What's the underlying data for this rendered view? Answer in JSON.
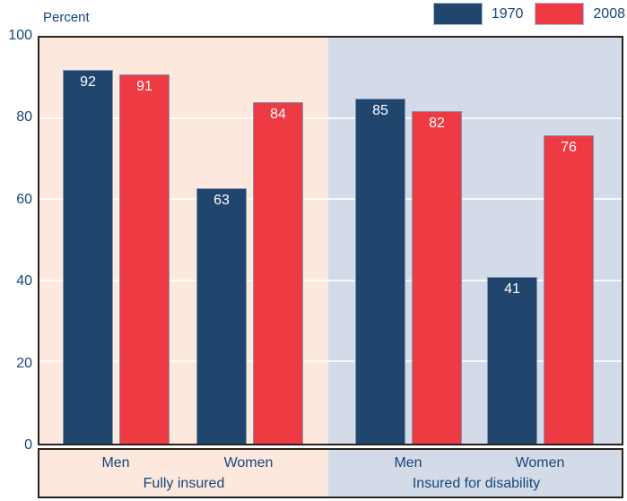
{
  "colors": {
    "bar_1970": "#21466e",
    "bar_2008": "#ee3a43",
    "bg_left": "#fde8dd",
    "bg_right": "#d3dbe8",
    "text": "#17457a",
    "border_dark": "#29221e",
    "bar_border": "#8094b5",
    "swatch_border": "#aebdd4",
    "gridline": "rgba(255,255,255,0.8)"
  },
  "chart_data": {
    "type": "bar",
    "ylabel": "Percent",
    "ylim": [
      0,
      100
    ],
    "yticks": [
      0,
      20,
      40,
      60,
      80,
      100
    ],
    "grid": true,
    "legend": [
      "1970",
      "2008"
    ],
    "legend_position": "top-right",
    "groups": [
      {
        "label": "Fully insured",
        "categories": [
          "Men",
          "Women"
        ],
        "series": [
          {
            "name": "1970",
            "values": [
              92,
              63
            ]
          },
          {
            "name": "2008",
            "values": [
              91,
              84
            ]
          }
        ]
      },
      {
        "label": "Insured for disability",
        "categories": [
          "Men",
          "Women"
        ],
        "series": [
          {
            "name": "1970",
            "values": [
              85,
              41
            ]
          },
          {
            "name": "2008",
            "values": [
              82,
              76
            ]
          }
        ]
      }
    ]
  }
}
